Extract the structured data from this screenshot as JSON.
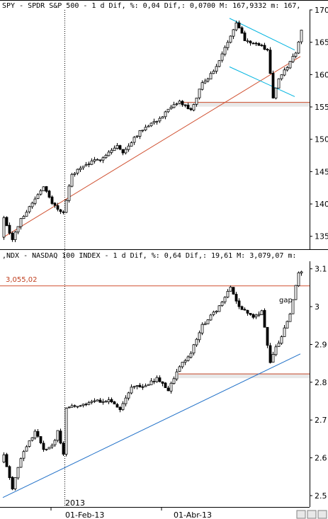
{
  "chart_data": [
    {
      "type": "candlestick",
      "title": "SPY - SPDR S&P 500 -  1 d Dif, %: 0,04 Dif,: 0,0700 M: 167,9332 m: 167,",
      "ylim": [
        133,
        170
      ],
      "yticks": [
        135,
        140,
        145,
        150,
        155,
        160,
        165,
        170
      ],
      "axis_side": "right",
      "grid": false,
      "start": 134.8,
      "checkpoints": [
        [
          0,
          138.0
        ],
        [
          3,
          134.5
        ],
        [
          6,
          137.6
        ],
        [
          10,
          140.2
        ],
        [
          14,
          142.8
        ],
        [
          17,
          140.0
        ],
        [
          21,
          138.6
        ],
        [
          24,
          144.6
        ],
        [
          29,
          146.1
        ],
        [
          34,
          147.0
        ],
        [
          40,
          149.0
        ],
        [
          42,
          147.8
        ],
        [
          46,
          150.3
        ],
        [
          50,
          152.0
        ],
        [
          55,
          153.2
        ],
        [
          58,
          154.5
        ],
        [
          62,
          155.8
        ],
        [
          66,
          154.4
        ],
        [
          70,
          158.6
        ],
        [
          74,
          160.5
        ],
        [
          78,
          164.0
        ],
        [
          82,
          168.2
        ],
        [
          85,
          165.4
        ],
        [
          89,
          164.8
        ],
        [
          93,
          163.8
        ],
        [
          95,
          156.5
        ],
        [
          97,
          159.2
        ],
        [
          100,
          161.2
        ],
        [
          103,
          163.5
        ],
        [
          105,
          166.8
        ]
      ],
      "trendline": {
        "color": "#d05030",
        "from": [
          0,
          134.8
        ],
        "to": [
          105,
          162.8
        ]
      },
      "support": {
        "color": "#d05030",
        "value": 155.7,
        "from_index": 62
      },
      "channel": {
        "color": "#00b4e0",
        "upper": [
          [
            80,
            168.7
          ],
          [
            103,
            163.8
          ]
        ],
        "lower": [
          [
            80,
            161.2
          ],
          [
            103,
            156.6
          ]
        ]
      }
    },
    {
      "type": "candlestick",
      "title": ",NDX - NASDAQ 100 INDEX -  1 d Dif, %: 0,64 Dif,: 19,61 M: 3,079,07 m:",
      "ylim": [
        2.47,
        3.12
      ],
      "yticks": [
        2.5,
        2.6,
        2.7,
        2.8,
        2.9,
        3.0,
        3.1
      ],
      "axis_side": "right",
      "grid": false,
      "start": 2.59,
      "checkpoints": [
        [
          0,
          2.61
        ],
        [
          3,
          2.52
        ],
        [
          6,
          2.6
        ],
        [
          11,
          2.67
        ],
        [
          14,
          2.62
        ],
        [
          17,
          2.63
        ],
        [
          19,
          2.67
        ],
        [
          21,
          2.61
        ],
        [
          22,
          2.73
        ],
        [
          27,
          2.74
        ],
        [
          33,
          2.75
        ],
        [
          37,
          2.75
        ],
        [
          41,
          2.73
        ],
        [
          45,
          2.79
        ],
        [
          50,
          2.79
        ],
        [
          54,
          2.81
        ],
        [
          58,
          2.78
        ],
        [
          62,
          2.84
        ],
        [
          66,
          2.88
        ],
        [
          70,
          2.95
        ],
        [
          75,
          2.99
        ],
        [
          80,
          3.05
        ],
        [
          83,
          3.0
        ],
        [
          88,
          2.97
        ],
        [
          91,
          2.99
        ],
        [
          94,
          2.85
        ],
        [
          96,
          2.89
        ],
        [
          99,
          2.94
        ],
        [
          101,
          2.98
        ],
        [
          104,
          3.09
        ]
      ],
      "trendline": {
        "color": "#2070c8",
        "from": [
          0,
          2.495
        ],
        "to": [
          105,
          2.875
        ]
      },
      "resistance": {
        "color": "#d05030",
        "value": 3.055,
        "label": "3,055,02"
      },
      "support": {
        "color": "#d05030",
        "value": 2.822,
        "from_index": 62
      },
      "gap_label": "gap"
    }
  ],
  "x_axis": {
    "year_label": "2013",
    "ticks": [
      {
        "label": "01-Feb-13",
        "index": 17
      },
      {
        "label": "01-Abr-13",
        "index": 56
      }
    ]
  }
}
